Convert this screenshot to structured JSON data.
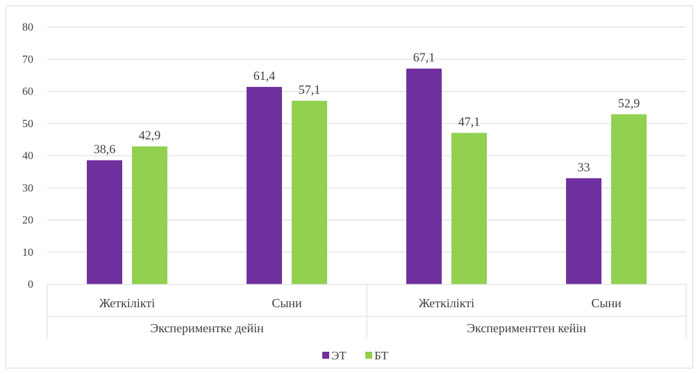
{
  "chart_data": {
    "type": "bar",
    "groups": [
      {
        "label": "Экспериментке дейін",
        "categories": [
          "Жеткілікті",
          "Сыни"
        ]
      },
      {
        "label": "Эксперименттен кейін",
        "categories": [
          "Жеткілікті",
          "Сыни"
        ]
      }
    ],
    "categories": [
      "Жеткілікті",
      "Сыни",
      "Жеткілікті",
      "Сыни"
    ],
    "series": [
      {
        "name": "ЭТ",
        "color": "#7030a0",
        "values": [
          38.6,
          61.4,
          67.1,
          33
        ],
        "labels": [
          "38,6",
          "61,4",
          "67,1",
          "33"
        ]
      },
      {
        "name": "БТ",
        "color": "#92d050",
        "values": [
          42.9,
          57.1,
          47.1,
          52.9
        ],
        "labels": [
          "42,9",
          "57,1",
          "47,1",
          "52,9"
        ]
      }
    ],
    "ylim": [
      0,
      80
    ],
    "yticks": [
      "0",
      "10",
      "20",
      "30",
      "40",
      "50",
      "60",
      "70",
      "80"
    ],
    "grid": true,
    "legend_position": "bottom"
  }
}
